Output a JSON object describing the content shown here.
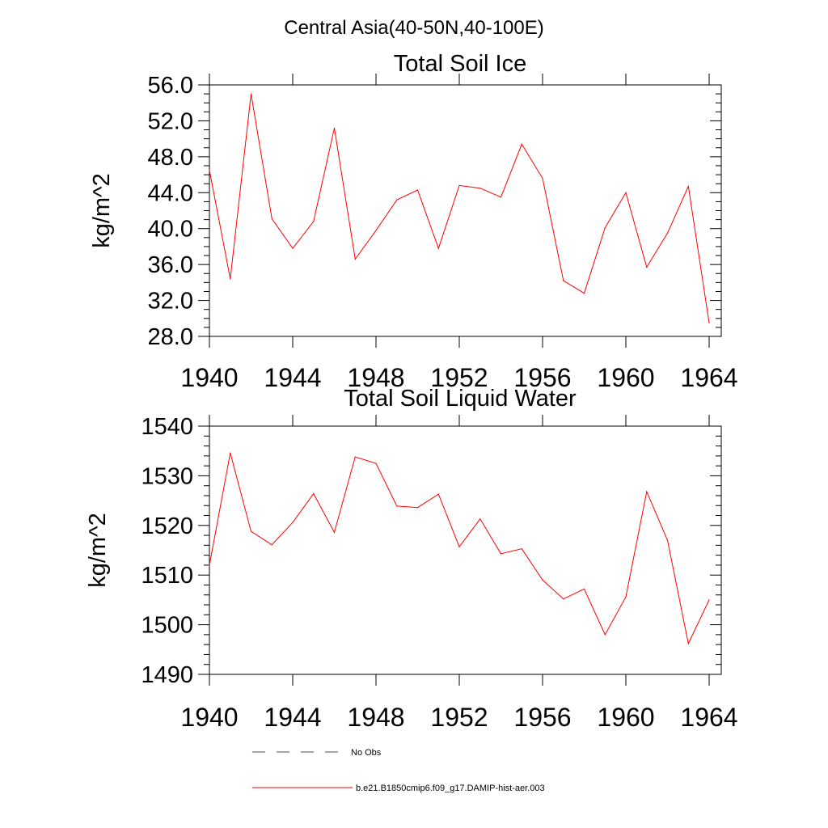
{
  "figure": {
    "title": "Central Asia(40-50N,40-100E)"
  },
  "chart_data": [
    {
      "type": "line",
      "title": "Total Soil Ice",
      "ylabel": "kg/m^2",
      "xlabel": "",
      "xlim": [
        1940,
        1964
      ],
      "ylim": [
        28,
        56
      ],
      "x_ticks": [
        "1940",
        "1944",
        "1948",
        "1952",
        "1956",
        "1960",
        "1964"
      ],
      "y_ticks": [
        "28.0",
        "32.0",
        "36.0",
        "40.0",
        "44.0",
        "48.0",
        "52.0",
        "56.0"
      ],
      "series": [
        {
          "name": "b.e21.B1850cmip6.f09_g17.DAMIP-hist-aer.003",
          "color": "#ff0000",
          "x": [
            1940,
            1941,
            1942,
            1943,
            1944,
            1945,
            1946,
            1947,
            1948,
            1949,
            1950,
            1951,
            1952,
            1953,
            1954,
            1955,
            1956,
            1957,
            1958,
            1959,
            1960,
            1961,
            1962,
            1963,
            1964
          ],
          "values": [
            46.5,
            34.4,
            55.0,
            41.1,
            37.8,
            40.8,
            51.2,
            36.6,
            39.8,
            43.2,
            44.3,
            37.8,
            44.8,
            44.5,
            43.5,
            49.4,
            45.6,
            34.2,
            32.8,
            40.1,
            44.0,
            35.7,
            39.5,
            44.7,
            29.5
          ]
        }
      ]
    },
    {
      "type": "line",
      "title": "Total Soil Liquid Water",
      "ylabel": "kg/m^2",
      "xlabel": "",
      "xlim": [
        1940,
        1964
      ],
      "ylim": [
        1490,
        1540
      ],
      "x_ticks": [
        "1940",
        "1944",
        "1948",
        "1952",
        "1956",
        "1960",
        "1964"
      ],
      "y_ticks": [
        "1490",
        "1500",
        "1510",
        "1520",
        "1530",
        "1540"
      ],
      "series": [
        {
          "name": "b.e21.B1850cmip6.f09_g17.DAMIP-hist-aer.003",
          "color": "#ff0000",
          "x": [
            1940,
            1941,
            1942,
            1943,
            1944,
            1945,
            1946,
            1947,
            1948,
            1949,
            1950,
            1951,
            1952,
            1953,
            1954,
            1955,
            1956,
            1957,
            1958,
            1959,
            1960,
            1961,
            1962,
            1963,
            1964
          ],
          "values": [
            1512,
            1534.6,
            1518.8,
            1516.1,
            1520.6,
            1526.4,
            1518.6,
            1533.8,
            1532.5,
            1523.9,
            1523.6,
            1526.3,
            1515.7,
            1521.3,
            1514.3,
            1515.3,
            1509.0,
            1505.2,
            1507.2,
            1498.0,
            1505.6,
            1526.8,
            1517.0,
            1496.2,
            1505
          ]
        }
      ]
    }
  ],
  "legend": {
    "items": [
      {
        "label": "No Obs",
        "style": "dashed",
        "color": "#4a4a6a"
      },
      {
        "label": "b.e21.B1850cmip6.f09_g17.DAMIP-hist-aer.003",
        "style": "solid",
        "color": "#ff0000"
      }
    ]
  }
}
